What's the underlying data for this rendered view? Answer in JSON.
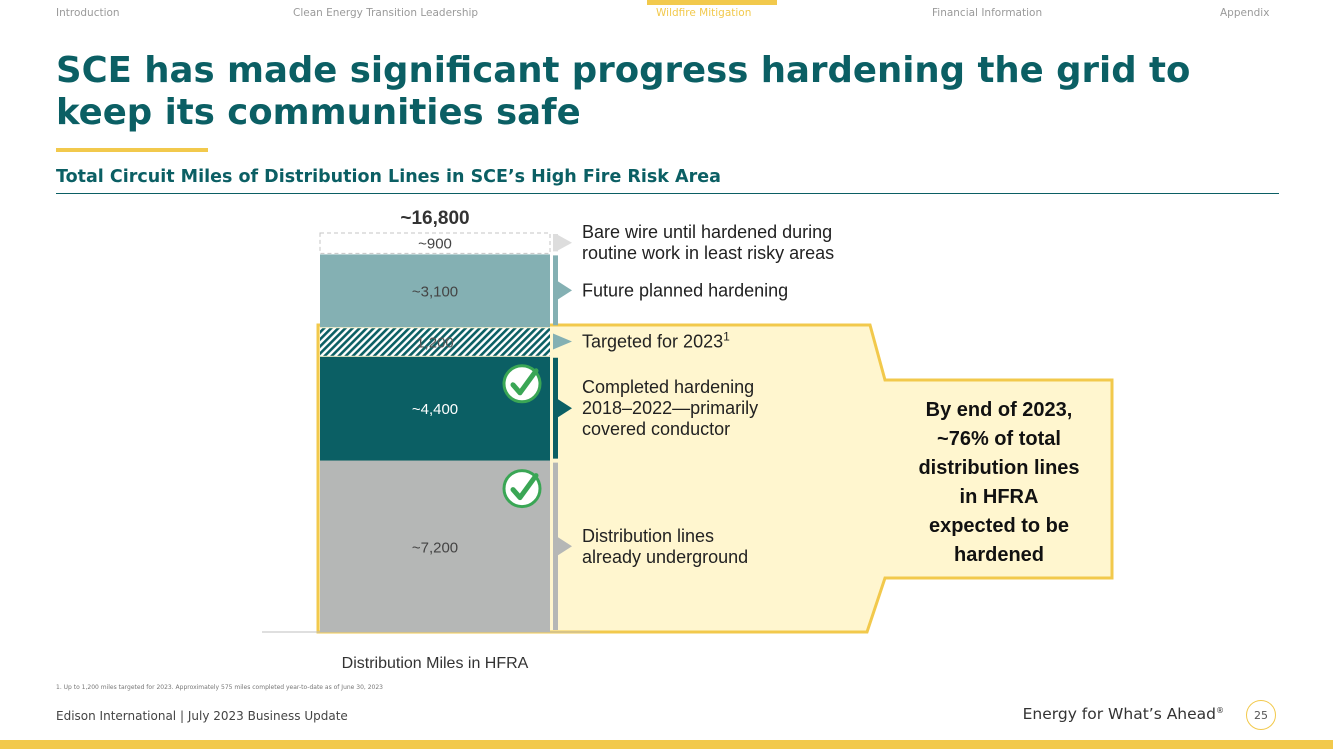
{
  "nav": {
    "items": [
      {
        "label": "Introduction",
        "active": false
      },
      {
        "label": "Clean Energy Transition Leadership",
        "active": false
      },
      {
        "label": "Wildfire Mitigation",
        "active": true
      },
      {
        "label": "Financial Information",
        "active": false
      },
      {
        "label": "Appendix",
        "active": false
      }
    ]
  },
  "title": "SCE has made significant progress hardening the grid to keep its communities safe",
  "subtitle": "Total Circuit Miles of Distribution Lines in SCE’s High Fire Risk Area",
  "chart_data": {
    "type": "bar",
    "stacked": true,
    "xlabel": "Distribution Miles in HFRA",
    "total_label": "~16,800",
    "segments": [
      {
        "value_label": "~7,200",
        "value": 7200,
        "description": "Distribution lines already underground",
        "color": "#b5b7b6",
        "checkmark": true
      },
      {
        "value_label": "~4,400",
        "value": 4400,
        "description": "Completed hardening 2018–2022—primarily covered conductor",
        "color": "#0b5f64",
        "checkmark": true
      },
      {
        "value_label": "1,200",
        "value": 1200,
        "description": "Targeted for 2023",
        "footnote_ref": "1",
        "color": "#0b5f64",
        "pattern": "hatched"
      },
      {
        "value_label": "~3,100",
        "value": 3100,
        "description": "Future planned hardening",
        "color": "#84b0b3"
      },
      {
        "value_label": "~900",
        "value": 900,
        "description": "Bare wire until hardened during routine work in least risky areas",
        "color": "#ffffff",
        "dashed": true
      }
    ],
    "callout": "By end of 2023, ~76% of total distribution lines in HFRA expected to be hardened",
    "colors": {
      "highlight_fill": "#fff6cf",
      "highlight_stroke": "#f2c94c",
      "check": "#3aa655"
    }
  },
  "footnote": "1.  Up to 1,200 miles targeted for 2023. Approximately 575 miles completed year-to-date as of June 30, 2023",
  "footer": {
    "company": "Edison International",
    "separator": "|",
    "event": "July 2023 Business Update",
    "tagline": "Energy for What’s Ahead",
    "tagline_mark": "®",
    "page_number": "25"
  }
}
